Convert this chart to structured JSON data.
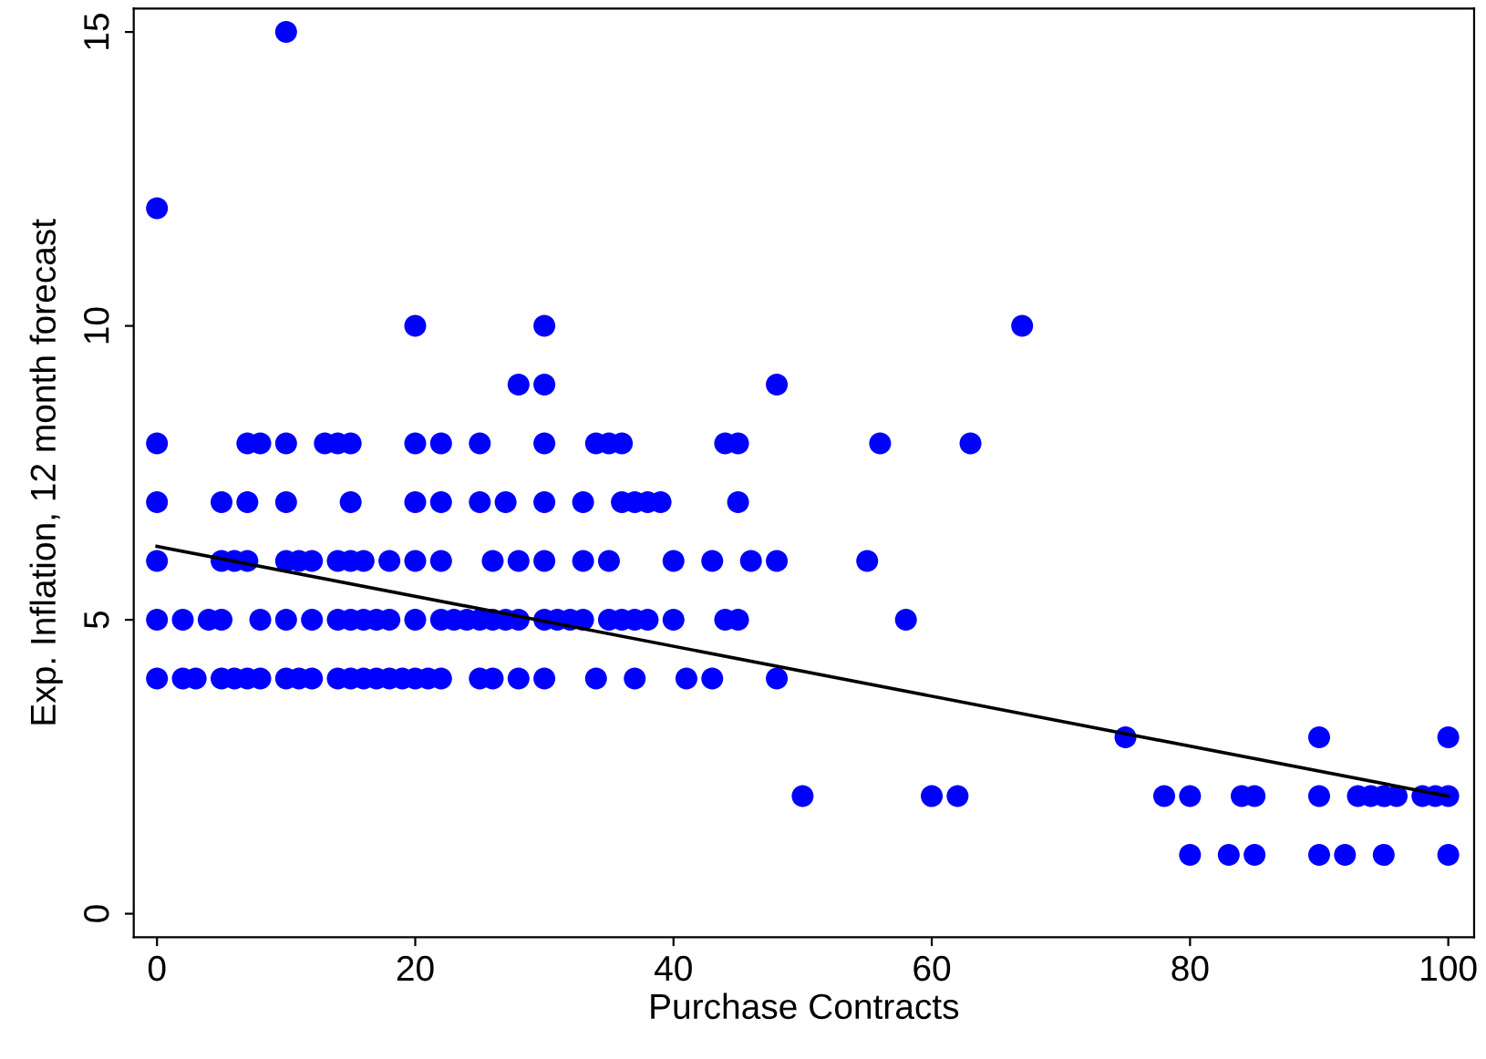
{
  "chart_data": {
    "type": "scatter",
    "xlabel": "Purchase Contracts",
    "ylabel": "Exp. Inflation, 12 month forecast",
    "xlim": [
      -1.8,
      102
    ],
    "ylim": [
      -0.4,
      15.4
    ],
    "xticks": [
      0,
      20,
      40,
      60,
      80,
      100
    ],
    "yticks": [
      0,
      5,
      10,
      15
    ],
    "grid": false,
    "marker": "circle",
    "series": [
      {
        "color": "#0000ff",
        "x": [
          80,
          83,
          85,
          90,
          92,
          95,
          100
        ],
        "values": [
          1,
          1,
          1,
          1,
          1,
          1,
          1
        ]
      },
      {
        "color": "#0000ff",
        "x": [
          50,
          60,
          62,
          78,
          80,
          84,
          85,
          90,
          93,
          94,
          95,
          96,
          98,
          99,
          100
        ],
        "values": [
          2,
          2,
          2,
          2,
          2,
          2,
          2,
          2,
          2,
          2,
          2,
          2,
          2,
          2,
          2
        ]
      },
      {
        "color": "#0000ff",
        "x": [
          75,
          90,
          100
        ],
        "values": [
          3,
          3,
          3
        ]
      },
      {
        "color": "#0000ff",
        "x": [
          0,
          2,
          3,
          5,
          6,
          7,
          8,
          10,
          11,
          12,
          14,
          15,
          16,
          17,
          18,
          19,
          20,
          21,
          22,
          25,
          26,
          28,
          30,
          34,
          37,
          41,
          43,
          48
        ],
        "values": [
          4,
          4,
          4,
          4,
          4,
          4,
          4,
          4,
          4,
          4,
          4,
          4,
          4,
          4,
          4,
          4,
          4,
          4,
          4,
          4,
          4,
          4,
          4,
          4,
          4,
          4,
          4,
          4
        ]
      },
      {
        "color": "#0000ff",
        "x": [
          0,
          2,
          4,
          5,
          8,
          10,
          12,
          14,
          15,
          16,
          17,
          18,
          20,
          22,
          23,
          24,
          25,
          26,
          27,
          28,
          30,
          31,
          32,
          33,
          35,
          36,
          37,
          38,
          40,
          44,
          45,
          58
        ],
        "values": [
          5,
          5,
          5,
          5,
          5,
          5,
          5,
          5,
          5,
          5,
          5,
          5,
          5,
          5,
          5,
          5,
          5,
          5,
          5,
          5,
          5,
          5,
          5,
          5,
          5,
          5,
          5,
          5,
          5,
          5,
          5,
          5
        ]
      },
      {
        "color": "#0000ff",
        "x": [
          0,
          5,
          6,
          7,
          10,
          11,
          12,
          14,
          15,
          16,
          18,
          20,
          22,
          26,
          28,
          30,
          33,
          35,
          40,
          43,
          46,
          48,
          55
        ],
        "values": [
          6,
          6,
          6,
          6,
          6,
          6,
          6,
          6,
          6,
          6,
          6,
          6,
          6,
          6,
          6,
          6,
          6,
          6,
          6,
          6,
          6,
          6,
          6
        ]
      },
      {
        "color": "#0000ff",
        "x": [
          0,
          5,
          7,
          10,
          15,
          20,
          22,
          25,
          27,
          30,
          33,
          36,
          37,
          38,
          39,
          45
        ],
        "values": [
          7,
          7,
          7,
          7,
          7,
          7,
          7,
          7,
          7,
          7,
          7,
          7,
          7,
          7,
          7,
          7
        ]
      },
      {
        "color": "#0000ff",
        "x": [
          0,
          7,
          8,
          10,
          13,
          14,
          15,
          20,
          22,
          25,
          30,
          34,
          35,
          36,
          44,
          45,
          56,
          63
        ],
        "values": [
          8,
          8,
          8,
          8,
          8,
          8,
          8,
          8,
          8,
          8,
          8,
          8,
          8,
          8,
          8,
          8,
          8,
          8
        ]
      },
      {
        "color": "#0000ff",
        "x": [
          28,
          30,
          48
        ],
        "values": [
          9,
          9,
          9
        ]
      },
      {
        "color": "#0000ff",
        "x": [
          20,
          30,
          67
        ],
        "values": [
          10,
          10,
          10
        ]
      },
      {
        "color": "#0000ff",
        "x": [
          0,
          10
        ],
        "values": [
          12,
          15
        ]
      },
      {
        "type": "line",
        "marker": "none",
        "color": "#000000",
        "x": [
          0,
          100
        ],
        "values": [
          6.25,
          2.0
        ]
      }
    ]
  }
}
